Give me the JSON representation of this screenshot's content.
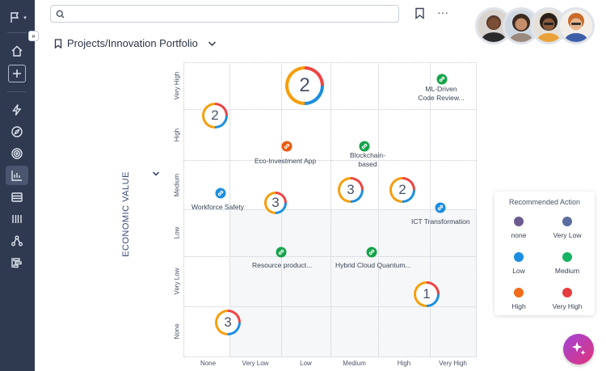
{
  "page": {
    "title": "Projects/Innovation Portfolio"
  },
  "search": {
    "placeholder": ""
  },
  "chart_data": {
    "type": "scatter",
    "title": "",
    "ylabel": "ECONOMIC VALUE",
    "xlabel": "",
    "x_categories": [
      "None",
      "Very Low",
      "Low",
      "Medium",
      "High",
      "Very High"
    ],
    "y_categories": [
      "None",
      "Very Low",
      "Low",
      "Medium",
      "High",
      "Very High"
    ],
    "clusters": [
      {
        "count": "2",
        "x": "Low",
        "y": "Very High"
      },
      {
        "count": "2",
        "x": "None",
        "y": "High"
      },
      {
        "count": "3",
        "x": "Low",
        "y": "Medium"
      },
      {
        "count": "3",
        "x": "Medium",
        "y": "Medium"
      },
      {
        "count": "2",
        "x": "High",
        "y": "Medium"
      },
      {
        "count": "1",
        "x": "High",
        "y": "Very Low"
      },
      {
        "count": "3",
        "x": "None",
        "y": "None"
      }
    ],
    "projects": [
      {
        "name": "ML-Driven Code Review...",
        "x": "Very High",
        "y": "Very High",
        "color": "#16a34a"
      },
      {
        "name": "Eco-Investment App",
        "x": "Low",
        "y": "High",
        "color": "#ea580c"
      },
      {
        "name": "Blockchain-based",
        "x": "Medium",
        "y": "High",
        "color": "#16a34a"
      },
      {
        "name": "Workforce Safety",
        "x": "None",
        "y": "Medium",
        "color": "#1c8ee0"
      },
      {
        "name": "ICT Transformation",
        "x": "Very High",
        "y": "Medium",
        "color": "#1c8ee0"
      },
      {
        "name": "Resource product...",
        "x": "Low",
        "y": "Low",
        "color": "#16a34a"
      },
      {
        "name": "Hybrid Cloud Quantum...",
        "x": "Medium",
        "y": "Low",
        "color": "#16a34a"
      }
    ]
  },
  "legend": {
    "title": "Recommended Action",
    "items": [
      {
        "label": "none",
        "color": "#6c5b8f"
      },
      {
        "label": "Very Low",
        "color": "#5a6d9e"
      },
      {
        "label": "Low",
        "color": "#1c8ee0"
      },
      {
        "label": "Medium",
        "color": "#16b364"
      },
      {
        "label": "High",
        "color": "#ef6c1a"
      },
      {
        "label": "Very High",
        "color": "#e53e3e"
      }
    ]
  },
  "colors": {
    "sidebar": "#2f3a51",
    "ring_segments": [
      "#ef4444",
      "#1c8ee0",
      "#f59e0b"
    ]
  }
}
